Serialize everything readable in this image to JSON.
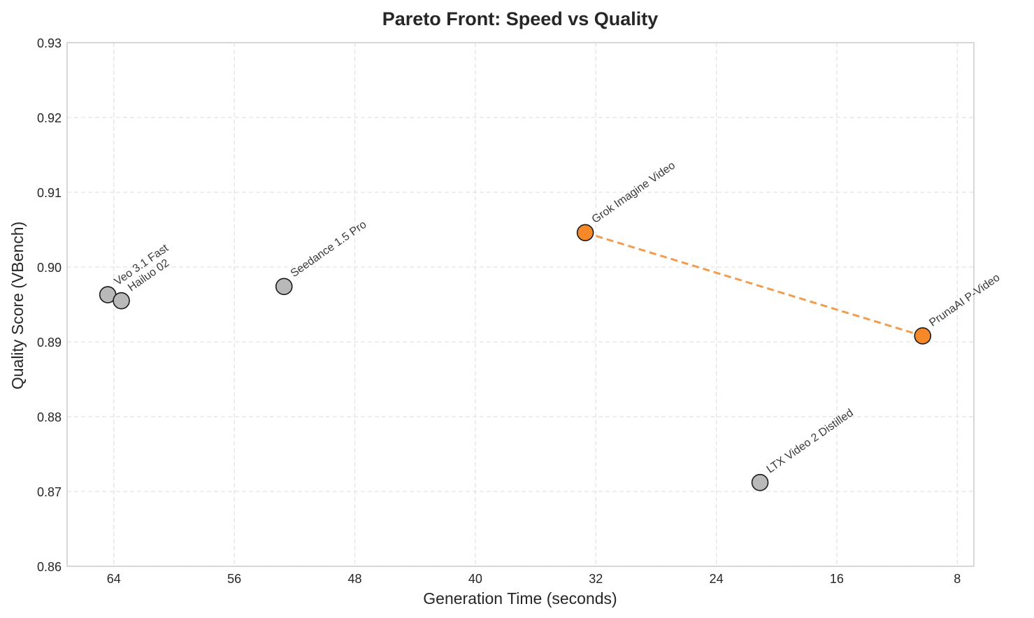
{
  "chart_data": {
    "type": "scatter",
    "title": "Pareto Front: Speed vs Quality",
    "xlabel": "Generation Time (seconds)",
    "ylabel": "Quality Score (VBench)",
    "x_axis_inverted": true,
    "xlim": [
      67.1,
      6.9
    ],
    "ylim": [
      0.86,
      0.93
    ],
    "xticks": [
      64,
      56,
      48,
      40,
      32,
      24,
      16,
      8
    ],
    "yticks": [
      0.86,
      0.87,
      0.88,
      0.89,
      0.9,
      0.91,
      0.92,
      0.93
    ],
    "ytick_labels": [
      "0.86",
      "0.87",
      "0.88",
      "0.89",
      "0.90",
      "0.91",
      "0.92",
      "0.93"
    ],
    "grid": true,
    "colors": {
      "pareto": "#f5892a",
      "other": "#b9b9b9",
      "edge": "#1a1a1a",
      "pareto_line": "#f19c4f"
    },
    "points": [
      {
        "label": "Veo 3.1 Fast",
        "x": 64.4,
        "y": 0.8963,
        "pareto": false
      },
      {
        "label": "Hailuo 02",
        "x": 63.5,
        "y": 0.8955,
        "pareto": false
      },
      {
        "label": "Seedance 1.5 Pro",
        "x": 52.7,
        "y": 0.8974,
        "pareto": false
      },
      {
        "label": "Grok Imagine Video",
        "x": 32.7,
        "y": 0.9046,
        "pareto": true
      },
      {
        "label": "PrunaAI P-Video",
        "x": 10.3,
        "y": 0.8908,
        "pareto": true
      },
      {
        "label": "LTX Video 2 Distilled",
        "x": 21.1,
        "y": 0.8712,
        "pareto": false
      }
    ],
    "pareto_front": [
      "Grok Imagine Video",
      "PrunaAI P-Video"
    ]
  }
}
